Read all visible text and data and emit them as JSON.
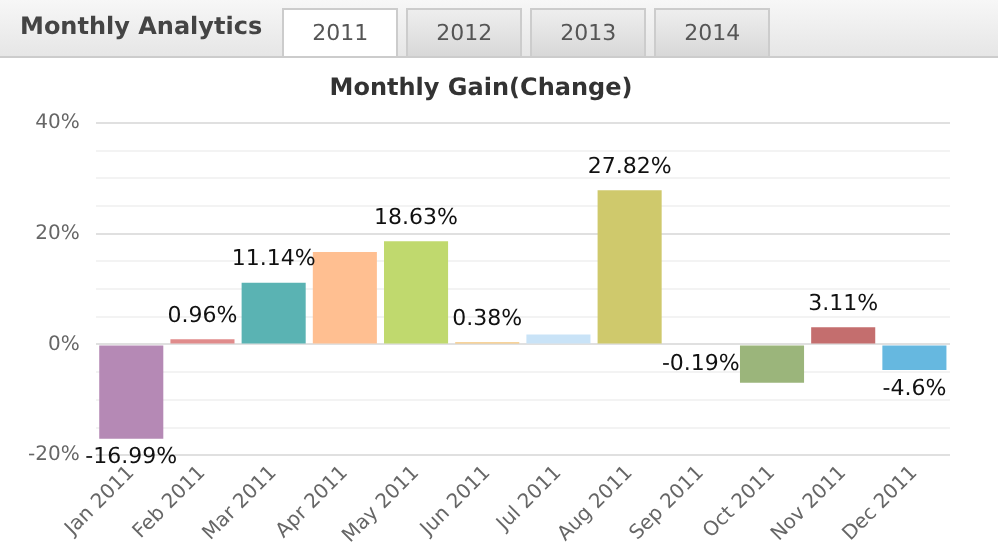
{
  "chart_data": {
    "type": "bar",
    "title": "Monthly Gain(Change)",
    "annotations": [
      "Monthly Analytics",
      "2011",
      "2012",
      "2013",
      "2014"
    ],
    "categories": [
      "Jan 2011",
      "Feb 2011",
      "Mar 2011",
      "Apr 2011",
      "May 2011",
      "Jun 2011",
      "Jul 2011",
      "Aug 2011",
      "Sep 2011",
      "Oct 2011",
      "Nov 2011",
      "Dec 2011"
    ],
    "values": [
      -16.99,
      0.96,
      11.14,
      16.7,
      18.63,
      0.38,
      1.8,
      27.82,
      -0.19,
      -6.9,
      3.11,
      -4.6
    ],
    "colors": [
      "#b589b5",
      "#e08b8b",
      "#5ab3b3",
      "#ffbf91",
      "#c0d96e",
      "#f5c57a",
      "#c9e3f7",
      "#cfc96c",
      "#a3a3d9",
      "#9bb57b",
      "#c46e6e",
      "#66b8e0"
    ],
    "value_labels": [
      "-16.99%",
      "0.96%",
      "11.14%",
      null,
      "18.63%",
      "0.38%",
      null,
      "27.82%",
      "-0.19%",
      null,
      "3.11%",
      "-4.6%"
    ],
    "ylim": [
      -20,
      40
    ],
    "yticks": [
      {
        "value": -20,
        "label": "-20%"
      },
      {
        "value": -15,
        "label": null
      },
      {
        "value": -10,
        "label": null
      },
      {
        "value": -5,
        "label": null
      },
      {
        "value": 0,
        "label": "0%"
      },
      {
        "value": 5,
        "label": null
      },
      {
        "value": 10,
        "label": null
      },
      {
        "value": 15,
        "label": null
      },
      {
        "value": 20,
        "label": "20%"
      },
      {
        "value": 25,
        "label": null
      },
      {
        "value": 30,
        "label": null
      },
      {
        "value": 35,
        "label": null
      },
      {
        "value": 40,
        "label": "40%"
      }
    ],
    "grid": "y",
    "legend": false
  }
}
